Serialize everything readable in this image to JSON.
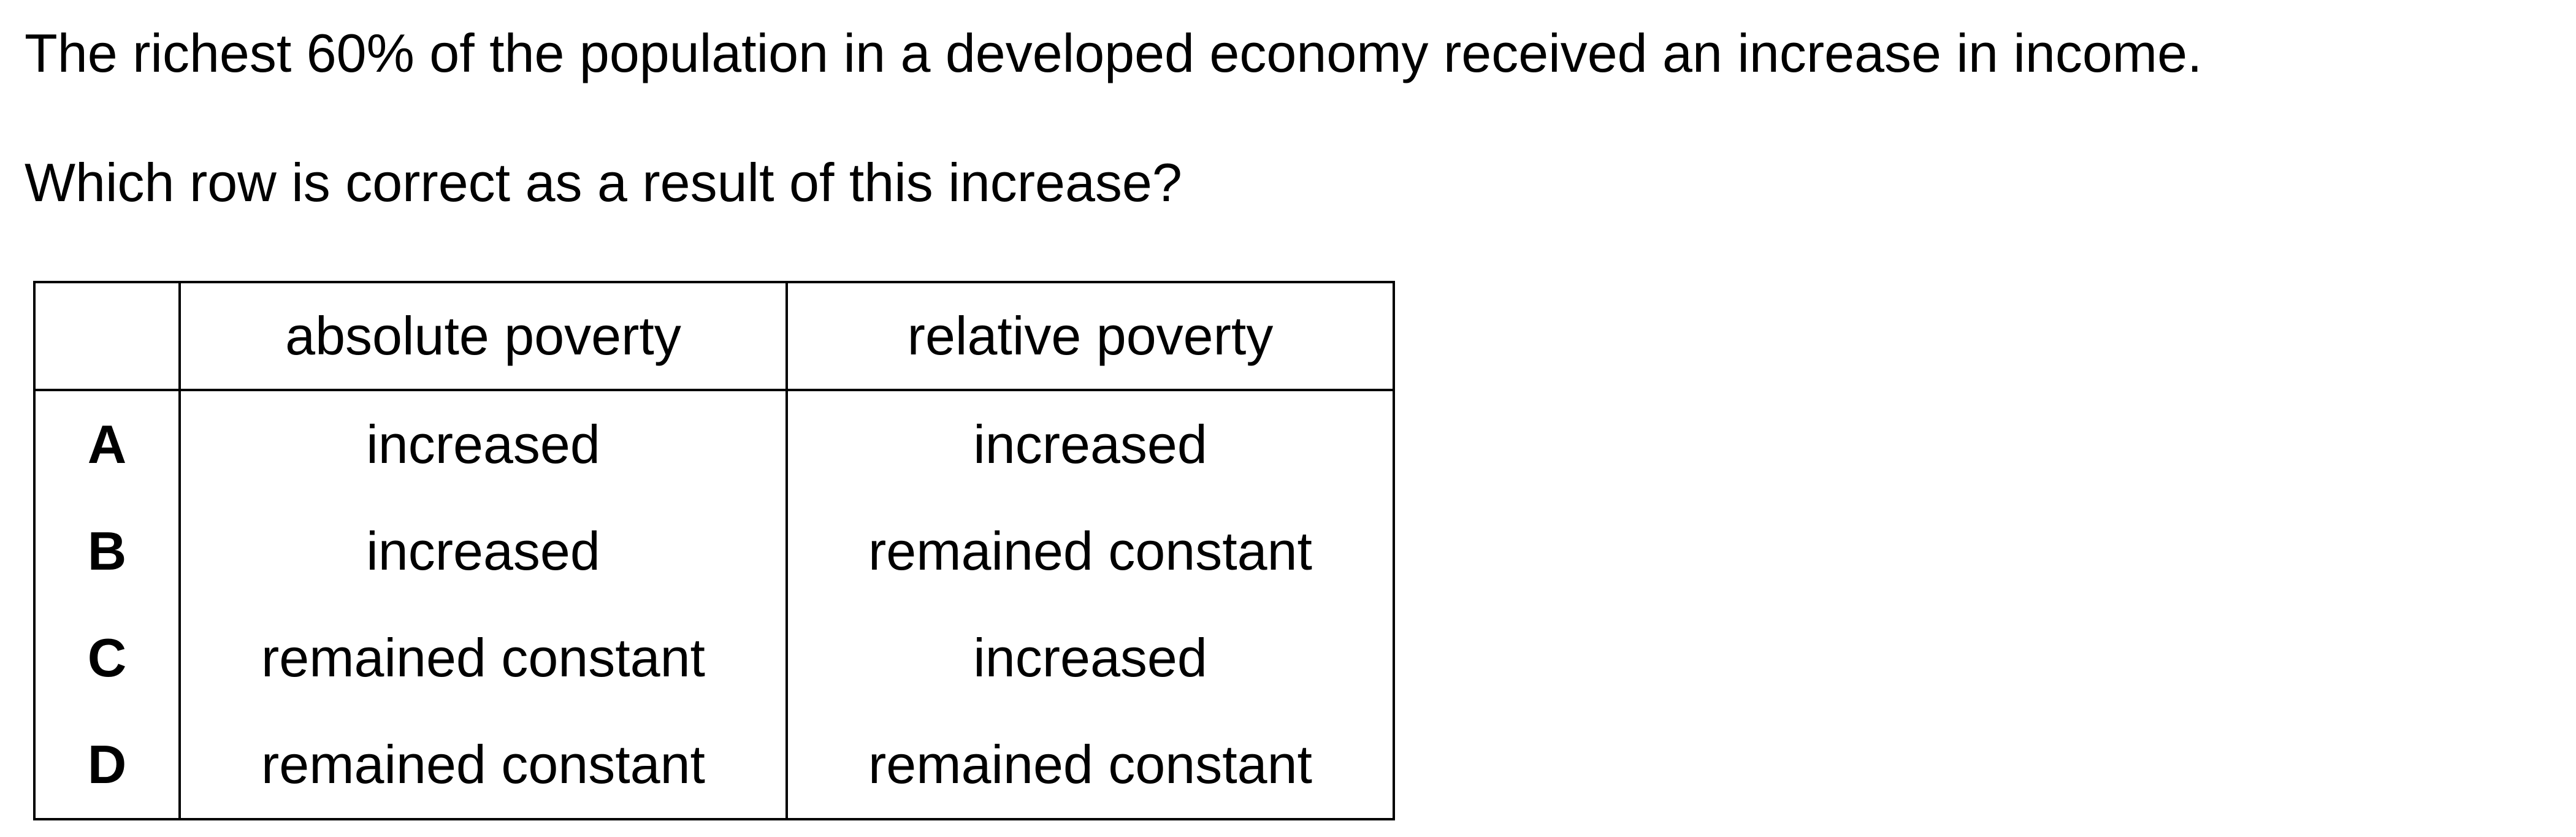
{
  "question": {
    "stem": "The richest 60% of the population in a developed economy received an increase in income.",
    "prompt": "Which row is correct as a result of this increase?"
  },
  "table": {
    "headers": [
      "",
      "absolute poverty",
      "relative poverty"
    ],
    "rows": [
      {
        "key": "A",
        "absolute": "increased",
        "relative": "increased"
      },
      {
        "key": "B",
        "absolute": "increased",
        "relative": "remained constant"
      },
      {
        "key": "C",
        "absolute": "remained constant",
        "relative": "increased"
      },
      {
        "key": "D",
        "absolute": "remained constant",
        "relative": "remained constant"
      }
    ]
  }
}
